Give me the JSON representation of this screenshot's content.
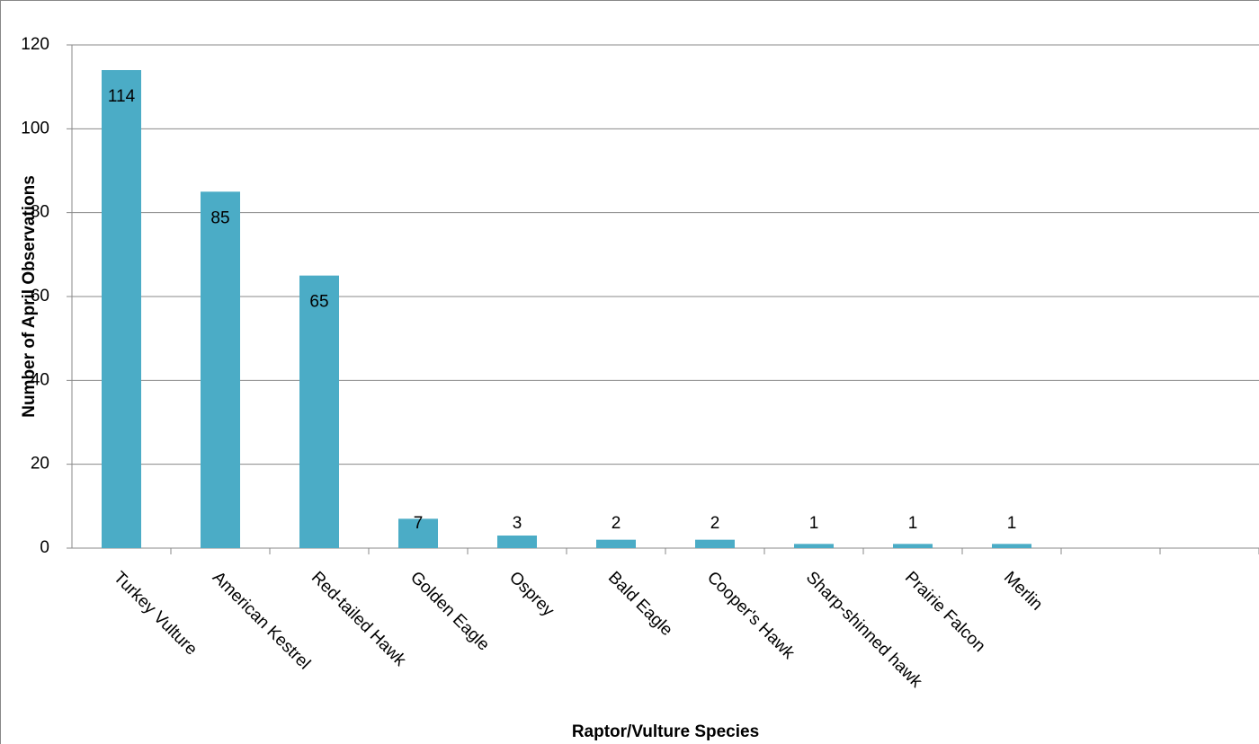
{
  "chart_data": {
    "type": "bar",
    "x_label": "Raptor/Vulture Species",
    "y_label": "Number of April Observations",
    "categories": [
      "Turkey Vulture",
      "American Kestrel",
      "Red-tailed Hawk",
      "Golden Eagle",
      "Osprey",
      "Bald Eagle",
      "Cooper's Hawk",
      "Sharp-shinned hawk",
      "Prairie Falcon",
      "Merlin",
      null,
      null
    ],
    "values": [
      114,
      85,
      65,
      7,
      3,
      2,
      2,
      1,
      1,
      1,
      null,
      null
    ],
    "color": "#4bacc6",
    "ylim": [
      0,
      120
    ],
    "yticks": [
      0,
      20,
      40,
      60,
      80,
      100,
      120
    ],
    "grid": true
  }
}
